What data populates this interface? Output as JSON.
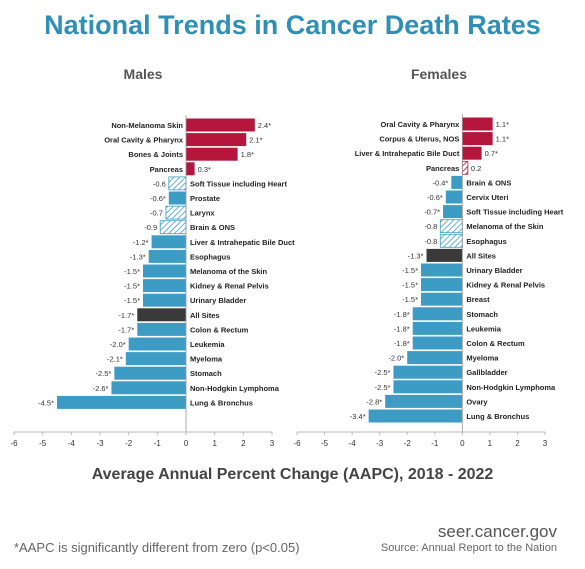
{
  "title": "National Trends in Cancer Death Rates",
  "x_axis_title": "Average Annual Percent Change (AAPC), 2018 - 2022",
  "footnote": "*AAPC is significantly different from zero (p<0.05)",
  "site": "seer.cancer.gov",
  "source": "Source: Annual Report to the Nation",
  "colors": {
    "increase": "#b5163c",
    "decrease": "#3d9cc3",
    "all_sites": "#3a3a3a",
    "hatch_increase": "#b5163c",
    "hatch_decrease": "#3d9cc3",
    "title": "#2f8fb5"
  },
  "chart_data": [
    {
      "type": "bar",
      "orientation": "horizontal",
      "title": "Males",
      "xlim": [
        -6,
        3
      ],
      "xticks": [
        -6,
        -5,
        -4,
        -3,
        -2,
        -1,
        0,
        1,
        2,
        3
      ],
      "categories": [
        "Non-Melanoma Skin",
        "Oral Cavity & Pharynx",
        "Bones & Joints",
        "Pancreas",
        "Soft Tissue including Heart",
        "Prostate",
        "Larynx",
        "Brain & ONS",
        "Liver & Intrahepatic Bile Duct",
        "Esophagus",
        "Melanoma of the Skin",
        "Kidney & Renal Pelvis",
        "Urinary Bladder",
        "All Sites",
        "Colon & Rectum",
        "Leukemia",
        "Myeloma",
        "Stomach",
        "Non-Hodgkin Lymphoma",
        "Lung & Bronchus"
      ],
      "values": [
        2.4,
        2.1,
        1.8,
        0.3,
        -0.6,
        -0.6,
        -0.7,
        -0.9,
        -1.2,
        -1.3,
        -1.5,
        -1.5,
        -1.5,
        -1.7,
        -1.7,
        -2.0,
        -2.1,
        -2.5,
        -2.6,
        -4.5
      ],
      "value_labels": [
        "2.4*",
        "2.1*",
        "1.8*",
        "0.3*",
        "-0.6",
        "-0.6*",
        "-0.7",
        "-0.9",
        "-1.2*",
        "-1.3*",
        "-1.5*",
        "-1.5*",
        "-1.5*",
        "-1.7*",
        "-1.7*",
        "-2.0*",
        "-2.1*",
        "-2.5*",
        "-2.6*",
        "-4.5*"
      ],
      "significant": [
        true,
        true,
        true,
        true,
        false,
        true,
        false,
        false,
        true,
        true,
        true,
        true,
        true,
        true,
        true,
        true,
        true,
        true,
        true,
        true
      ]
    },
    {
      "type": "bar",
      "orientation": "horizontal",
      "title": "Females",
      "xlim": [
        -6,
        3
      ],
      "xticks": [
        -6,
        -5,
        -4,
        -3,
        -2,
        -1,
        0,
        1,
        2,
        3
      ],
      "categories": [
        "Oral Cavity & Pharynx",
        "Corpus & Uterus, NOS",
        "Liver & Intrahepatic Bile Duct",
        "Pancreas",
        "Brain & ONS",
        "Cervix Uteri",
        "Soft Tissue including Heart",
        "Melanoma of the Skin",
        "Esophagus",
        "All Sites",
        "Urinary Bladder",
        "Kidney & Renal Pelvis",
        "Breast",
        "Stomach",
        "Leukemia",
        "Colon & Rectum",
        "Myeloma",
        "Gallbladder",
        "Non-Hodgkin Lymphoma",
        "Ovary",
        "Lung & Bronchus"
      ],
      "values": [
        1.1,
        1.1,
        0.7,
        0.2,
        -0.4,
        -0.6,
        -0.7,
        -0.8,
        -0.8,
        -1.3,
        -1.5,
        -1.5,
        -1.5,
        -1.8,
        -1.8,
        -1.8,
        -2.0,
        -2.5,
        -2.5,
        -2.8,
        -3.4
      ],
      "value_labels": [
        "1.1*",
        "1.1*",
        "0.7*",
        "0.2",
        "-0.4*",
        "-0.6*",
        "-0.7*",
        "-0.8",
        "-0.8",
        "-1.3*",
        "-1.5*",
        "-1.5*",
        "-1.5*",
        "-1.8*",
        "-1.8*",
        "-1.8*",
        "-2.0*",
        "-2.5*",
        "-2.5*",
        "-2.8*",
        "-3.4*"
      ],
      "significant": [
        true,
        true,
        true,
        false,
        true,
        true,
        true,
        false,
        false,
        true,
        true,
        true,
        true,
        true,
        true,
        true,
        true,
        true,
        true,
        true,
        true
      ]
    }
  ]
}
